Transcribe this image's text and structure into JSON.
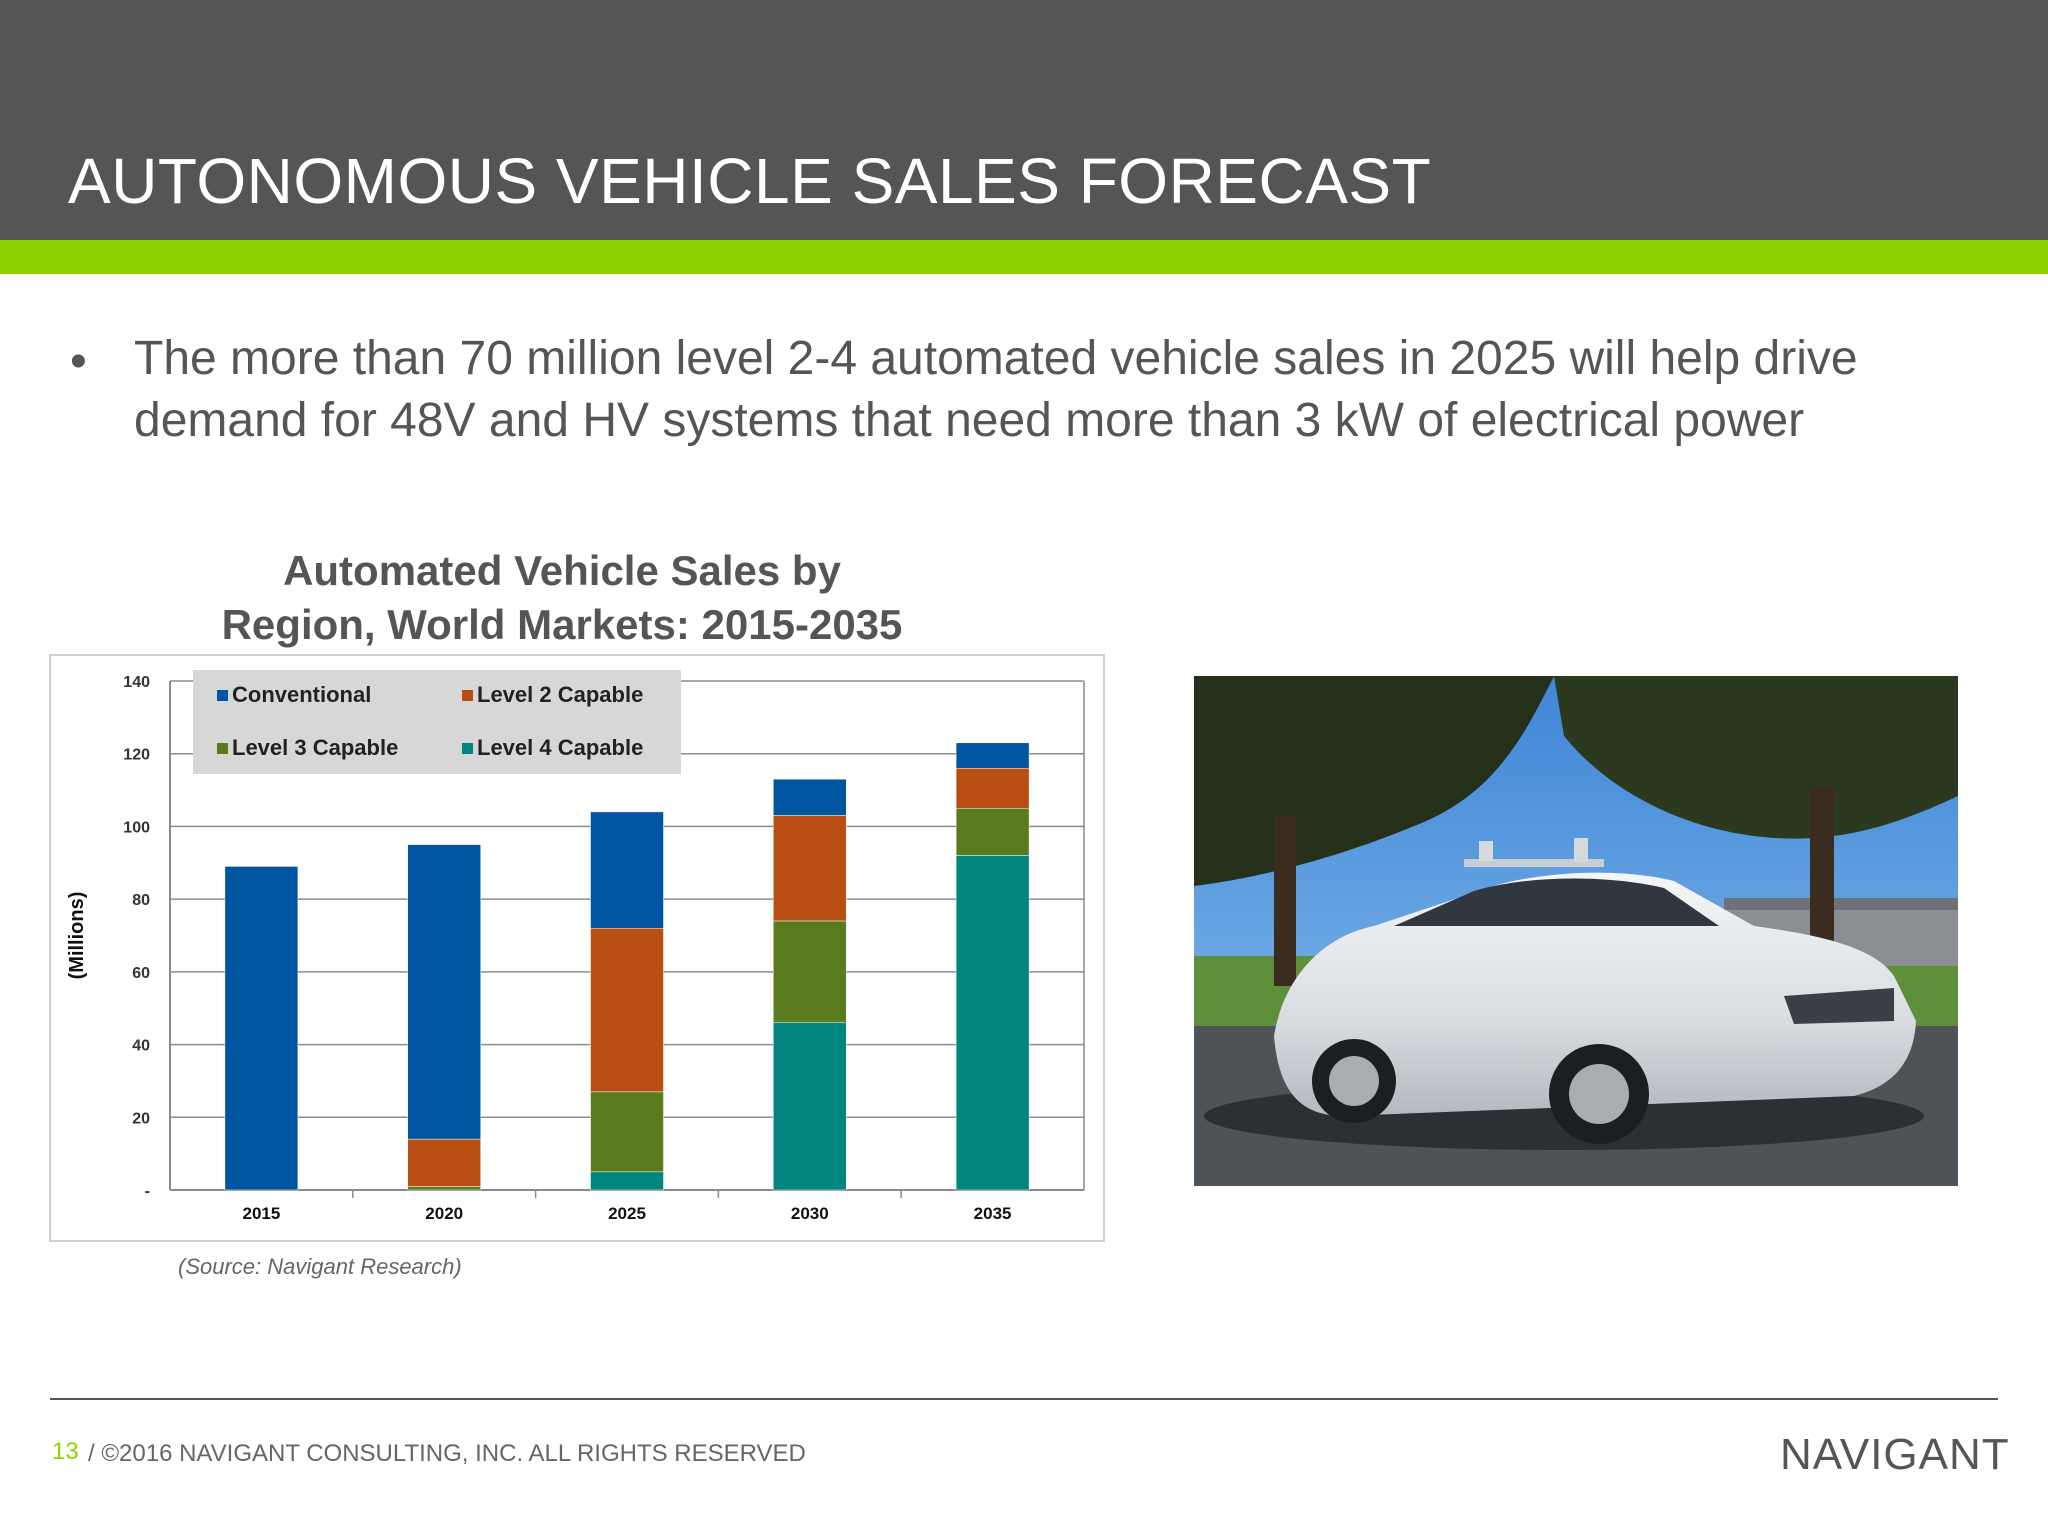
{
  "header": {
    "title": "AUTONOMOUS VEHICLE SALES FORECAST"
  },
  "bullet": {
    "marker": "•",
    "text": "The more than 70 million level 2-4 automated vehicle sales in 2025 will help drive demand for 48V and HV systems that need more than 3 kW of electrical power"
  },
  "chart_data": {
    "type": "bar",
    "stacked": true,
    "title_line1": "Automated Vehicle Sales by",
    "title_line2": "Region, World Markets: 2015-2035",
    "xlabel": "",
    "ylabel": "(Millions)",
    "ylim": [
      0,
      140
    ],
    "yticks": [
      0,
      20,
      40,
      60,
      80,
      100,
      120,
      140
    ],
    "ytick_labels": [
      "-",
      "20",
      "40",
      "60",
      "80",
      "100",
      "120",
      "140"
    ],
    "categories": [
      "2015",
      "2020",
      "2025",
      "2030",
      "2035"
    ],
    "grid": true,
    "legend_position": "top-left",
    "series": [
      {
        "name": "Level 4 Capable",
        "color": "#00867f",
        "values": [
          0,
          0,
          5,
          46,
          92
        ]
      },
      {
        "name": "Level 3 Capable",
        "color": "#5a7a1e",
        "values": [
          0,
          1,
          22,
          28,
          13
        ]
      },
      {
        "name": "Level 2 Capable",
        "color": "#b84e12",
        "values": [
          0,
          13,
          45,
          29,
          11
        ]
      },
      {
        "name": "Conventional",
        "color": "#0055a0",
        "values": [
          89,
          81,
          32,
          10,
          7
        ]
      }
    ],
    "legend_order": [
      "Conventional",
      "Level 2 Capable",
      "Level 3 Capable",
      "Level 4 Capable"
    ],
    "source": "(Source: Navigant Research)"
  },
  "photo": {
    "icon": "autonomous-car-photo"
  },
  "footer": {
    "page": "13",
    "copyright": "/ ©2016 NAVIGANT CONSULTING, INC. ALL RIGHTS RESERVED",
    "logo_text": "NAVIGANT"
  },
  "colors": {
    "header_bg": "#555555",
    "accent": "#8fd400",
    "text": "#555555"
  }
}
